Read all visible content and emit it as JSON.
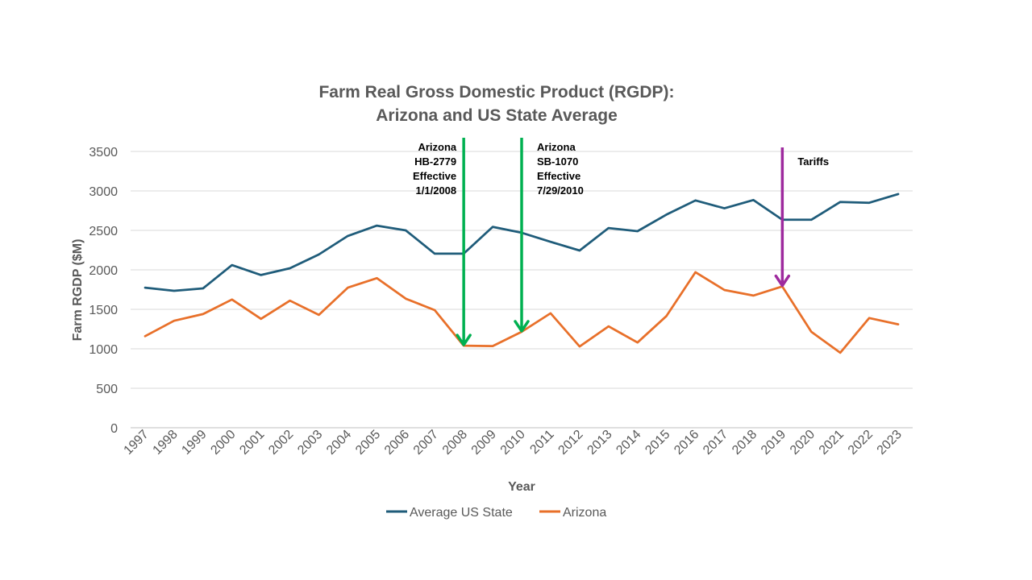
{
  "chart_data": {
    "type": "line",
    "title": "Farm Real Gross Domestic Product (RGDP):",
    "subtitle": "Arizona and US State Average",
    "xlabel": "Year",
    "ylabel": "Farm RGDP ($M)",
    "ylim": [
      0,
      3500
    ],
    "yticks": [
      "0",
      "500",
      "1000",
      "1500",
      "2000",
      "2500",
      "3000",
      "3500"
    ],
    "grid": true,
    "legend_position": "bottom",
    "categories": [
      "1997",
      "1998",
      "1999",
      "2000",
      "2001",
      "2002",
      "2003",
      "2004",
      "2005",
      "2006",
      "2007",
      "2008",
      "2009",
      "2010",
      "2011",
      "2012",
      "2013",
      "2014",
      "2015",
      "2016",
      "2017",
      "2018",
      "2019",
      "2020",
      "2021",
      "2022",
      "2023"
    ],
    "series": [
      {
        "name": "Average US State",
        "color": "#1F5C7A",
        "values": [
          1775,
          1735,
          1765,
          2060,
          1935,
          2020,
          2195,
          2430,
          2560,
          2500,
          2205,
          2205,
          2545,
          2470,
          2355,
          2245,
          2530,
          2490,
          2700,
          2880,
          2780,
          2885,
          2635,
          2635,
          2860,
          2850,
          2960
        ]
      },
      {
        "name": "Arizona",
        "color": "#E8702A",
        "values": [
          1160,
          1355,
          1440,
          1625,
          1380,
          1610,
          1430,
          1775,
          1895,
          1635,
          1490,
          1040,
          1035,
          1215,
          1450,
          1030,
          1285,
          1080,
          1415,
          1970,
          1745,
          1675,
          1790,
          1215,
          950,
          1390,
          1310
        ]
      }
    ],
    "annotations": [
      {
        "lines": [
          "Arizona",
          "HB-2779",
          "Effective",
          "1/1/2008"
        ],
        "year": "2008",
        "value": 1040,
        "color": "#00B050",
        "align": "right"
      },
      {
        "lines": [
          "Arizona",
          "SB-1070",
          "Effective",
          "7/29/2010"
        ],
        "year": "2010",
        "value": 1215,
        "color": "#00B050",
        "align": "left"
      },
      {
        "lines": [
          "Tariffs"
        ],
        "year": "2019",
        "value": 1790,
        "color": "#9E2A9E",
        "align": "left"
      }
    ]
  }
}
